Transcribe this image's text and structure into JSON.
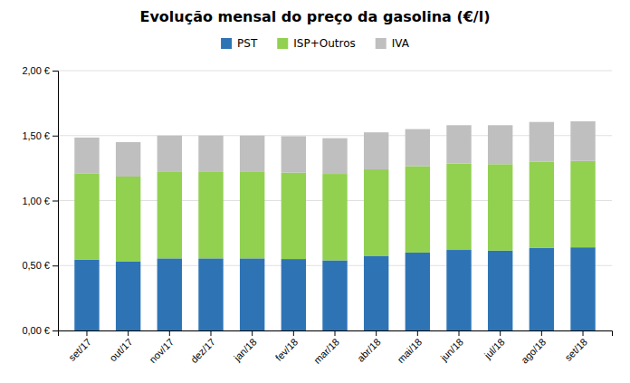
{
  "chart_data": {
    "type": "bar",
    "stacked": true,
    "title": "Evolução mensal do preço da gasolina (€/l)",
    "categories": [
      "set/17",
      "out/17",
      "nov/17",
      "dez/17",
      "jan/18",
      "fev/18",
      "mar/18",
      "abr/18",
      "mai/18",
      "jun/18",
      "jul/18",
      "ago/18",
      "set/18"
    ],
    "series": [
      {
        "name": "PST",
        "color": "#2e74b5",
        "values": [
          0.545,
          0.53,
          0.555,
          0.555,
          0.555,
          0.55,
          0.54,
          0.575,
          0.6,
          0.62,
          0.615,
          0.635,
          0.64
        ]
      },
      {
        "name": "ISP+Outros",
        "color": "#92d050",
        "values": [
          0.665,
          0.655,
          0.665,
          0.665,
          0.665,
          0.665,
          0.665,
          0.665,
          0.665,
          0.665,
          0.665,
          0.665,
          0.665
        ]
      },
      {
        "name": "IVA",
        "color": "#bfbfbf",
        "values": [
          0.275,
          0.265,
          0.28,
          0.28,
          0.28,
          0.28,
          0.275,
          0.285,
          0.285,
          0.295,
          0.3,
          0.305,
          0.305
        ]
      }
    ],
    "ylim": [
      0,
      2.0
    ],
    "yticks": [
      {
        "value": 0.0,
        "label": "0,00 €"
      },
      {
        "value": 0.5,
        "label": "0,50 €"
      },
      {
        "value": 1.0,
        "label": "1,00 €"
      },
      {
        "value": 1.5,
        "label": "1,50 €"
      },
      {
        "value": 2.0,
        "label": "2,00 €"
      }
    ],
    "grid": true,
    "legend": "top"
  }
}
